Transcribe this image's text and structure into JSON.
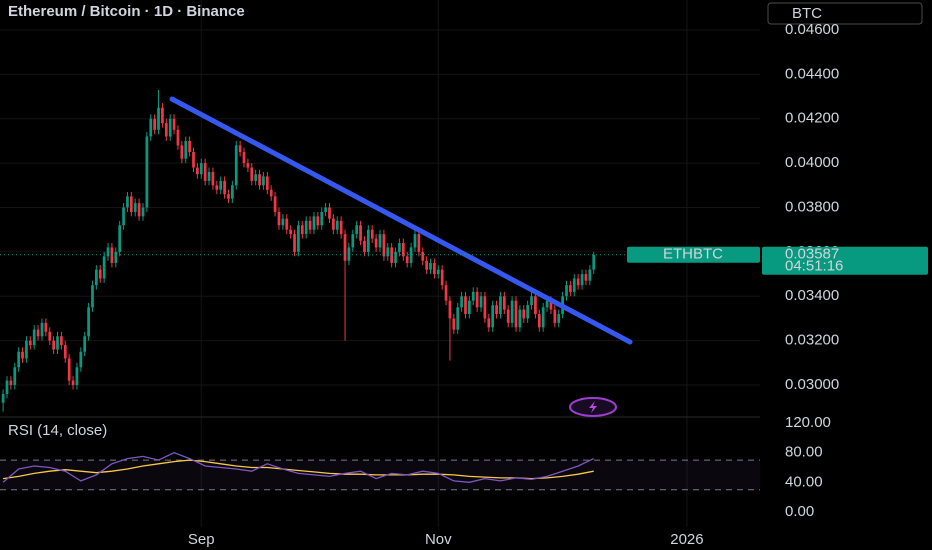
{
  "chart_data": {
    "type": "candlestick",
    "title": "Ethereum / Bitcoin · 1D · Binance",
    "currency_button": "BTC",
    "up_color": "#089981",
    "down_color": "#f23645",
    "grid": true,
    "xlim": [
      -0.8,
      194.8
    ],
    "xticks": [
      {
        "value": 51,
        "label": "Sep"
      },
      {
        "value": 112,
        "label": "Nov"
      },
      {
        "value": 176,
        "label": "2026"
      }
    ],
    "ylim": [
      0.02856,
      0.04735
    ],
    "yticks": [
      {
        "value": 0.03,
        "label": "0.03000"
      },
      {
        "value": 0.032,
        "label": "0.03200"
      },
      {
        "value": 0.034,
        "label": "0.03400"
      },
      {
        "value": 0.036,
        "label": "0.03600"
      },
      {
        "value": 0.038,
        "label": "0.03800"
      },
      {
        "value": 0.04,
        "label": "0.04000"
      },
      {
        "value": 0.042,
        "label": "0.04200"
      },
      {
        "value": 0.044,
        "label": "0.04400"
      },
      {
        "value": 0.046,
        "label": "0.04600"
      }
    ],
    "open": [
      0.0292,
      0.0296,
      0.0302,
      0.03,
      0.0308,
      0.0315,
      0.0312,
      0.032,
      0.0318,
      0.0325,
      0.0322,
      0.0328,
      0.0324,
      0.032,
      0.0316,
      0.0322,
      0.0318,
      0.0312,
      0.0302,
      0.03,
      0.0308,
      0.0315,
      0.0322,
      0.0335,
      0.0345,
      0.0352,
      0.0348,
      0.0358,
      0.0362,
      0.0355,
      0.036,
      0.0372,
      0.038,
      0.0385,
      0.0378,
      0.0382,
      0.0376,
      0.038,
      0.0412,
      0.042,
      0.0415,
      0.0425,
      0.0418,
      0.0412,
      0.042,
      0.0415,
      0.0408,
      0.0402,
      0.041,
      0.0405,
      0.0398,
      0.0395,
      0.04,
      0.0392,
      0.0396,
      0.039,
      0.0388,
      0.0392,
      0.0386,
      0.0384,
      0.039,
      0.0408,
      0.0405,
      0.04,
      0.0398,
      0.0392,
      0.0395,
      0.039,
      0.0394,
      0.0388,
      0.0385,
      0.0378,
      0.0372,
      0.0375,
      0.037,
      0.0368,
      0.036,
      0.0372,
      0.0368,
      0.0374,
      0.037,
      0.0376,
      0.0372,
      0.0378,
      0.038,
      0.0375,
      0.037,
      0.0374,
      0.0368,
      0.0356,
      0.0362,
      0.0368,
      0.0372,
      0.0365,
      0.036,
      0.037,
      0.0366,
      0.0362,
      0.0368,
      0.0358,
      0.0362,
      0.0355,
      0.036,
      0.0364,
      0.0358,
      0.0355,
      0.0362,
      0.0368,
      0.036,
      0.0356,
      0.0352,
      0.0355,
      0.035,
      0.0352,
      0.0345,
      0.0338,
      0.033,
      0.0325,
      0.0335,
      0.034,
      0.0332,
      0.0338,
      0.0342,
      0.0335,
      0.034,
      0.033,
      0.0326,
      0.0336,
      0.0332,
      0.034,
      0.0334,
      0.0328,
      0.0338,
      0.0326,
      0.0334,
      0.033,
      0.0336,
      0.034,
      0.0332,
      0.0326,
      0.0335,
      0.0338,
      0.0334,
      0.0328,
      0.0332,
      0.034,
      0.0345,
      0.0342,
      0.0348,
      0.0345,
      0.035,
      0.0347,
      0.0352
    ],
    "high": [
      0.0298,
      0.0304,
      0.0304,
      0.031,
      0.0317,
      0.0317,
      0.0322,
      0.0322,
      0.0327,
      0.0327,
      0.033,
      0.033,
      0.0326,
      0.0322,
      0.0324,
      0.0324,
      0.032,
      0.0314,
      0.0304,
      0.031,
      0.0317,
      0.0324,
      0.0337,
      0.0347,
      0.0354,
      0.0354,
      0.036,
      0.0364,
      0.0364,
      0.0362,
      0.0374,
      0.0382,
      0.0387,
      0.0387,
      0.0384,
      0.0384,
      0.0382,
      0.0414,
      0.0422,
      0.0422,
      0.0433,
      0.0427,
      0.042,
      0.0422,
      0.0422,
      0.0417,
      0.041,
      0.0412,
      0.0412,
      0.0407,
      0.04,
      0.0402,
      0.0402,
      0.0398,
      0.0398,
      0.0392,
      0.0394,
      0.0394,
      0.0388,
      0.0392,
      0.041,
      0.041,
      0.0407,
      0.0402,
      0.04,
      0.0397,
      0.0397,
      0.0396,
      0.0396,
      0.039,
      0.0387,
      0.038,
      0.0377,
      0.0377,
      0.0372,
      0.037,
      0.0374,
      0.0374,
      0.0376,
      0.0376,
      0.0378,
      0.0378,
      0.038,
      0.0382,
      0.0382,
      0.0377,
      0.0376,
      0.0376,
      0.037,
      0.0364,
      0.037,
      0.0374,
      0.0374,
      0.0367,
      0.0372,
      0.0372,
      0.0368,
      0.037,
      0.037,
      0.0364,
      0.0364,
      0.0362,
      0.0366,
      0.0366,
      0.036,
      0.0364,
      0.037,
      0.037,
      0.0362,
      0.0358,
      0.0357,
      0.0357,
      0.0354,
      0.0354,
      0.0347,
      0.034,
      0.0332,
      0.0337,
      0.0342,
      0.0342,
      0.034,
      0.0344,
      0.0344,
      0.0342,
      0.0342,
      0.0332,
      0.0338,
      0.0338,
      0.0342,
      0.0342,
      0.0336,
      0.034,
      0.034,
      0.0336,
      0.0336,
      0.0338,
      0.0342,
      0.0342,
      0.0334,
      0.0337,
      0.034,
      0.034,
      0.0336,
      0.0334,
      0.0342,
      0.0347,
      0.0347,
      0.035,
      0.035,
      0.0352,
      0.0352,
      0.0354,
      0.036
    ],
    "low": [
      0.0288,
      0.0294,
      0.0298,
      0.0298,
      0.0306,
      0.031,
      0.031,
      0.0316,
      0.0316,
      0.032,
      0.032,
      0.0322,
      0.0318,
      0.0314,
      0.0314,
      0.0316,
      0.031,
      0.03,
      0.0298,
      0.0298,
      0.0306,
      0.0313,
      0.032,
      0.0333,
      0.0343,
      0.0346,
      0.0346,
      0.0356,
      0.0353,
      0.0353,
      0.0358,
      0.037,
      0.0378,
      0.0376,
      0.0376,
      0.0374,
      0.0374,
      0.0378,
      0.041,
      0.0413,
      0.0413,
      0.0416,
      0.041,
      0.041,
      0.0413,
      0.0406,
      0.04,
      0.04,
      0.0403,
      0.0396,
      0.0393,
      0.0393,
      0.039,
      0.039,
      0.0388,
      0.0386,
      0.0386,
      0.0384,
      0.0382,
      0.0382,
      0.0388,
      0.0403,
      0.0398,
      0.0396,
      0.039,
      0.039,
      0.0388,
      0.0388,
      0.0386,
      0.0383,
      0.0376,
      0.037,
      0.037,
      0.0368,
      0.0366,
      0.0358,
      0.0358,
      0.0366,
      0.0366,
      0.0368,
      0.0368,
      0.037,
      0.037,
      0.0376,
      0.0373,
      0.0368,
      0.0368,
      0.0366,
      0.032,
      0.0354,
      0.036,
      0.0366,
      0.0363,
      0.0358,
      0.0358,
      0.0364,
      0.036,
      0.036,
      0.0356,
      0.0356,
      0.0353,
      0.0353,
      0.0358,
      0.0356,
      0.0353,
      0.0353,
      0.036,
      0.0358,
      0.0354,
      0.035,
      0.035,
      0.0348,
      0.0348,
      0.0343,
      0.0336,
      0.0311,
      0.0323,
      0.0323,
      0.0333,
      0.033,
      0.033,
      0.0336,
      0.0333,
      0.0333,
      0.0328,
      0.0324,
      0.0324,
      0.033,
      0.033,
      0.0332,
      0.0326,
      0.0326,
      0.0324,
      0.0324,
      0.0328,
      0.0328,
      0.0334,
      0.033,
      0.0324,
      0.0324,
      0.0333,
      0.0332,
      0.0326,
      0.0326,
      0.033,
      0.0338,
      0.034,
      0.034,
      0.0343,
      0.0343,
      0.0345,
      0.0345,
      0.035
    ],
    "close": [
      0.0296,
      0.0302,
      0.03,
      0.0308,
      0.0315,
      0.0312,
      0.032,
      0.0318,
      0.0325,
      0.0322,
      0.0328,
      0.0324,
      0.032,
      0.0316,
      0.0322,
      0.0318,
      0.0312,
      0.0302,
      0.03,
      0.0308,
      0.0315,
      0.0322,
      0.0335,
      0.0345,
      0.0352,
      0.0348,
      0.0358,
      0.0362,
      0.0355,
      0.036,
      0.0372,
      0.038,
      0.0385,
      0.0378,
      0.0382,
      0.0376,
      0.038,
      0.0412,
      0.042,
      0.0415,
      0.0425,
      0.0418,
      0.0412,
      0.042,
      0.0415,
      0.0408,
      0.0402,
      0.041,
      0.0405,
      0.0398,
      0.0395,
      0.04,
      0.0392,
      0.0396,
      0.039,
      0.0388,
      0.0392,
      0.0386,
      0.0384,
      0.039,
      0.0408,
      0.0405,
      0.04,
      0.0398,
      0.0392,
      0.0395,
      0.039,
      0.0394,
      0.0388,
      0.0385,
      0.0378,
      0.0372,
      0.0375,
      0.037,
      0.0368,
      0.036,
      0.0372,
      0.0368,
      0.0374,
      0.037,
      0.0376,
      0.0372,
      0.0378,
      0.038,
      0.0375,
      0.037,
      0.0374,
      0.0368,
      0.0356,
      0.0362,
      0.0368,
      0.0372,
      0.0365,
      0.036,
      0.037,
      0.0366,
      0.0362,
      0.0368,
      0.0358,
      0.0362,
      0.0355,
      0.036,
      0.0364,
      0.0358,
      0.0355,
      0.0362,
      0.0368,
      0.036,
      0.0356,
      0.0352,
      0.0355,
      0.035,
      0.0352,
      0.0345,
      0.0338,
      0.033,
      0.0325,
      0.0335,
      0.034,
      0.0332,
      0.0338,
      0.0342,
      0.0335,
      0.034,
      0.033,
      0.0326,
      0.0336,
      0.0332,
      0.034,
      0.0334,
      0.0328,
      0.0338,
      0.0326,
      0.0334,
      0.033,
      0.0336,
      0.034,
      0.0332,
      0.0326,
      0.0335,
      0.0338,
      0.0334,
      0.0328,
      0.0332,
      0.034,
      0.0345,
      0.0342,
      0.0348,
      0.0345,
      0.035,
      0.0347,
      0.0352,
      0.03587
    ],
    "last_price": {
      "symbol": "ETHBTC",
      "value": 0.03587,
      "countdown": "04:51:16"
    },
    "rsi": {
      "title": "RSI (14, close)",
      "ylim": [
        0,
        120
      ],
      "yticks": [
        {
          "value": 0,
          "label": "0.00"
        },
        {
          "value": 40,
          "label": "40.00"
        },
        {
          "value": 80,
          "label": "80.00"
        },
        {
          "value": 120,
          "label": "120.00"
        }
      ],
      "bands": [
        30,
        70
      ],
      "color": "#7e57c2",
      "ma_color": "#f7c948",
      "x": [
        0,
        4,
        8,
        12,
        16,
        20,
        24,
        28,
        32,
        36,
        40,
        44,
        48,
        52,
        56,
        60,
        64,
        68,
        72,
        76,
        80,
        84,
        88,
        92,
        96,
        100,
        104,
        108,
        112,
        116,
        120,
        124,
        128,
        132,
        136,
        140,
        144,
        148,
        152
      ],
      "values": [
        40,
        58,
        62,
        60,
        55,
        42,
        50,
        65,
        72,
        75,
        70,
        80,
        72,
        62,
        60,
        58,
        55,
        65,
        58,
        52,
        50,
        48,
        52,
        55,
        45,
        52,
        50,
        55,
        52,
        42,
        40,
        45,
        42,
        46,
        44,
        48,
        55,
        62,
        72
      ],
      "ma": [
        45,
        48,
        52,
        55,
        57,
        55,
        53,
        55,
        58,
        62,
        65,
        68,
        70,
        68,
        65,
        62,
        60,
        60,
        58,
        56,
        54,
        52,
        51,
        51,
        50,
        50,
        50,
        51,
        51,
        50,
        48,
        47,
        46,
        46,
        45,
        46,
        48,
        51,
        55
      ]
    }
  }
}
